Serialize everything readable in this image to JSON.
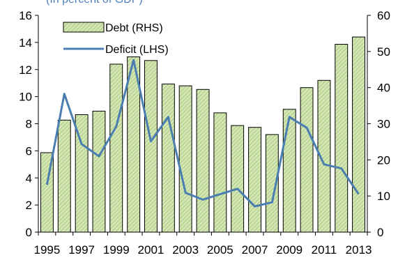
{
  "chart_data": {
    "type": "bar",
    "subtitle": "(In percent of GDP)",
    "subtitle_color": "#4a7ebb",
    "categories": [
      "1995",
      "1996",
      "1997",
      "1998",
      "1999",
      "2000",
      "2001",
      "2002",
      "2003",
      "2004",
      "2005",
      "2006",
      "2007",
      "2008",
      "2009",
      "2010",
      "2011",
      "2012",
      "2013"
    ],
    "x_tick_labels": [
      "1995",
      "1997",
      "1999",
      "2001",
      "2003",
      "2005",
      "2007",
      "2009",
      "2011",
      "2013"
    ],
    "left_axis": {
      "ylim": [
        0,
        16
      ],
      "ticks": [
        "0",
        "2",
        "4",
        "6",
        "8",
        "10",
        "12",
        "14",
        "16"
      ]
    },
    "right_axis": {
      "ylim": [
        0,
        60
      ],
      "ticks": [
        "0",
        "10",
        "20",
        "30",
        "40",
        "50",
        "60"
      ]
    },
    "grid": false,
    "legend_position": "top-left",
    "series": [
      {
        "name": "Debt (RHS)",
        "type": "bar",
        "axis": "right",
        "color": "#d4e6b5",
        "edge_color": "#000000",
        "pattern": "diagonal-hatch",
        "values": [
          22,
          31,
          32.5,
          33.5,
          46.5,
          48.5,
          47.5,
          41,
          40.5,
          39.5,
          33,
          29.5,
          29,
          27,
          34,
          40,
          42,
          52,
          54
        ]
      },
      {
        "name": "Deficit (LHS)",
        "type": "line",
        "axis": "left",
        "color": "#4a7eb0",
        "values": [
          3.5,
          10.2,
          6.5,
          5.6,
          7.8,
          12.7,
          6.7,
          8.5,
          2.9,
          2.4,
          2.8,
          3.2,
          1.9,
          2.2,
          8.5,
          7.7,
          5,
          4.7,
          2.8
        ]
      }
    ]
  }
}
